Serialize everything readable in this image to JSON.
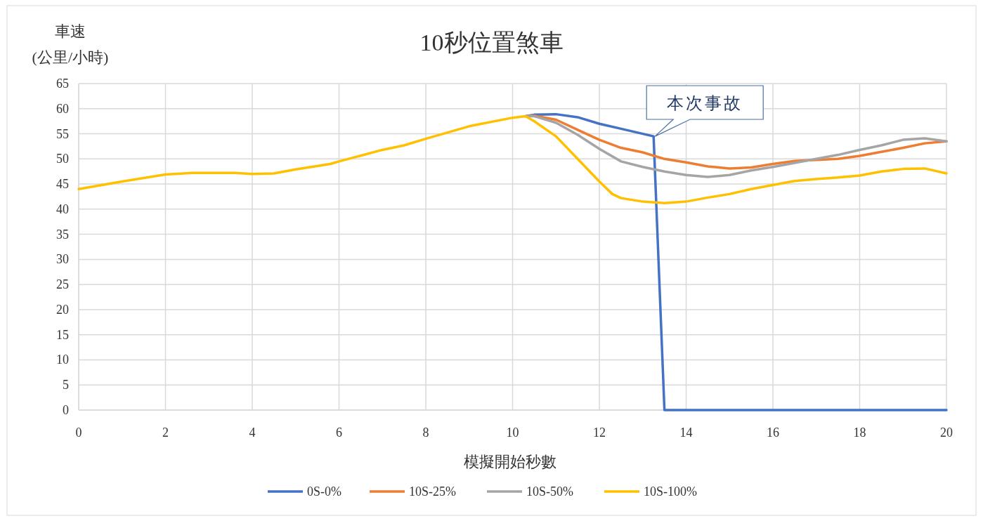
{
  "chart_data": {
    "type": "line",
    "title": "10秒位置煞車",
    "xlabel": "模擬開始秒數",
    "ylabel": "車速\n(公里/小時)",
    "xlim": [
      0,
      20
    ],
    "xticks": [
      0,
      2,
      4,
      6,
      8,
      10,
      12,
      14,
      16,
      18,
      20
    ],
    "ylim": [
      0,
      65
    ],
    "yticks": [
      0,
      5,
      10,
      15,
      20,
      25,
      30,
      35,
      40,
      45,
      50,
      55,
      60,
      65
    ],
    "grid": true,
    "legend": "bottom",
    "marker": "none",
    "line_style": "solid",
    "annotations": [
      {
        "text": "本次事故",
        "x": 13.25,
        "y": 54.5
      }
    ],
    "series": [
      {
        "name": "0S-0%",
        "color": "#4472c4",
        "x": [
          10.3,
          10.5,
          11,
          11.5,
          12,
          12.5,
          13.25,
          13.5,
          20
        ],
        "values": [
          58.5,
          58.8,
          58.9,
          58.3,
          57,
          56,
          54.5,
          0,
          0
        ]
      },
      {
        "name": "10S-25%",
        "color": "#ed7d31",
        "x": [
          10.3,
          10.5,
          11,
          11.5,
          12,
          12.5,
          13,
          13.5,
          14,
          14.5,
          15,
          15.5,
          16,
          16.5,
          17,
          17.5,
          18,
          18.5,
          19,
          19.5,
          20
        ],
        "values": [
          58.5,
          58.6,
          57.8,
          55.8,
          53.8,
          52.2,
          51.3,
          50,
          49.3,
          48.5,
          48.1,
          48.3,
          49,
          49.6,
          49.8,
          50,
          50.6,
          51.4,
          52.2,
          53.1,
          53.5
        ]
      },
      {
        "name": "10S-50%",
        "color": "#a5a5a5",
        "x": [
          10.3,
          10.5,
          11,
          11.5,
          12,
          12.5,
          13,
          13.5,
          14,
          14.5,
          15,
          15.5,
          16,
          16.5,
          17,
          17.5,
          18,
          18.5,
          19,
          19.5,
          20
        ],
        "values": [
          58.5,
          58.5,
          57.2,
          54.8,
          52,
          49.5,
          48.4,
          47.5,
          46.8,
          46.4,
          46.8,
          47.7,
          48.4,
          49.2,
          50,
          50.8,
          51.8,
          52.7,
          53.8,
          54.1,
          53.5
        ]
      },
      {
        "name": "10S-100%",
        "color": "#ffc000",
        "x": [
          0,
          1,
          2,
          2.6,
          3.6,
          4,
          4.5,
          5,
          5.8,
          6,
          7,
          7.5,
          8,
          9,
          10,
          10.3,
          10.5,
          11,
          11.5,
          12,
          12.3,
          12.5,
          13,
          13.5,
          14,
          14.5,
          15,
          15.5,
          16,
          16.5,
          17,
          17.5,
          18,
          18.5,
          19,
          19.5,
          20
        ],
        "values": [
          44,
          45.5,
          46.9,
          47.2,
          47.2,
          47,
          47.1,
          47.9,
          49,
          49.5,
          51.8,
          52.7,
          54,
          56.5,
          58.2,
          58.5,
          57.5,
          54.5,
          50,
          45.5,
          43,
          42.2,
          41.5,
          41.2,
          41.5,
          42.3,
          43,
          44,
          44.8,
          45.6,
          46,
          46.3,
          46.7,
          47.5,
          48,
          48.1,
          47.1
        ]
      }
    ]
  }
}
